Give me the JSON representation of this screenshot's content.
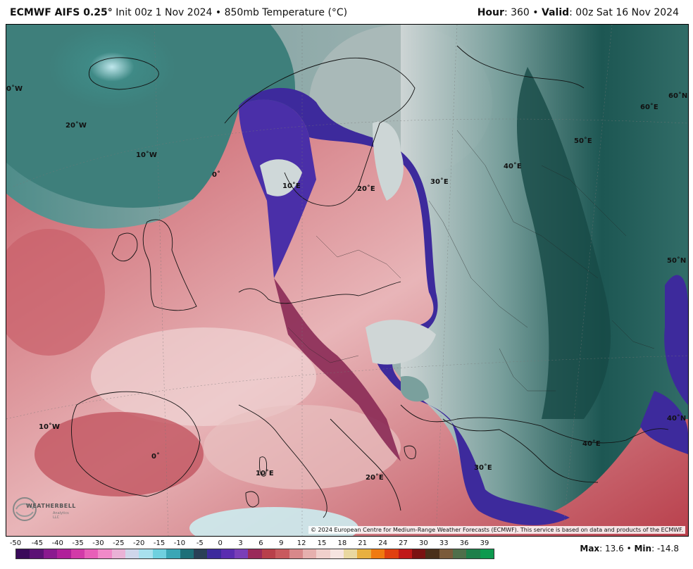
{
  "header": {
    "model": "ECMWF AIFS 0.25",
    "degree_symbol": "°",
    "init": "Init 00z 1 Nov 2024",
    "bullet": "•",
    "field": "850mb Temperature (°C)",
    "hour_label": "Hour",
    "hour_value": ": 360",
    "valid_label": "Valid",
    "valid_value": ": 00z Sat 16 Nov 2024"
  },
  "map": {
    "grid_labels": [
      {
        "id": "lon-0w-top",
        "text": "0˚W"
      },
      {
        "id": "lon-20w",
        "text": "20˚W"
      },
      {
        "id": "lon-10w-top",
        "text": "10˚W"
      },
      {
        "id": "lon-0-top",
        "text": "0˚"
      },
      {
        "id": "lon-10e-top",
        "text": "10˚E"
      },
      {
        "id": "lon-20e-top",
        "text": "20˚E"
      },
      {
        "id": "lon-30e-top",
        "text": "30˚E"
      },
      {
        "id": "lon-40e-top",
        "text": "40˚E"
      },
      {
        "id": "lon-50e",
        "text": "50˚E"
      },
      {
        "id": "lon-60e",
        "text": "60˚E"
      },
      {
        "id": "lat-60n",
        "text": "60˚N"
      },
      {
        "id": "lat-50n",
        "text": "50˚N"
      },
      {
        "id": "lat-40n",
        "text": "40˚N"
      },
      {
        "id": "lon-10w-bot",
        "text": "10˚W"
      },
      {
        "id": "lon-0-bot",
        "text": "0˚"
      },
      {
        "id": "lon-10e-bot",
        "text": "10˚E"
      },
      {
        "id": "lon-20e-bot",
        "text": "20˚E"
      },
      {
        "id": "lon-30e-bot",
        "text": "30˚E"
      },
      {
        "id": "lon-40e-bot",
        "text": "40˚E"
      }
    ],
    "copyright": "© 2024 European Centre for Medium-Range Weather Forecasts (ECMWF). This service is based on data and products of the ECMWF.",
    "logo_text": "WEATHERBELL",
    "logo_sub": "Analytics LLC"
  },
  "colorbar": {
    "ticks": [
      "-50",
      "-45",
      "-40",
      "-35",
      "-30",
      "-25",
      "-20",
      "-15",
      "-10",
      "-5",
      "0",
      "3",
      "6",
      "9",
      "12",
      "15",
      "18",
      "21",
      "24",
      "27",
      "30",
      "33",
      "36",
      "39"
    ],
    "colors": [
      "#3a0a5a",
      "#5c1275",
      "#8a1a8f",
      "#b0209a",
      "#d23aa8",
      "#e85fb8",
      "#f08ac8",
      "#eab2d6",
      "#cfd6ea",
      "#a8e0ee",
      "#6fd0df",
      "#3aa6b5",
      "#1e6f78",
      "#2a3f56",
      "#3d2a9c",
      "#5a2db0",
      "#7a3fb8",
      "#9a2a5a",
      "#b8404a",
      "#c85a5e",
      "#d8888a",
      "#e6b0ae",
      "#f0d0cc",
      "#f6e4e0",
      "#e9d8a0",
      "#e8b040",
      "#f07a10",
      "#e04010",
      "#c01818",
      "#7a1212",
      "#4a2f1a",
      "#7a5a3a",
      "#4f6f4a",
      "#1e7f4a",
      "#0e9a4f"
    ],
    "max_label": "Max",
    "max_value": ": 13.6",
    "min_label": "Min",
    "min_value": ": -14.8"
  }
}
